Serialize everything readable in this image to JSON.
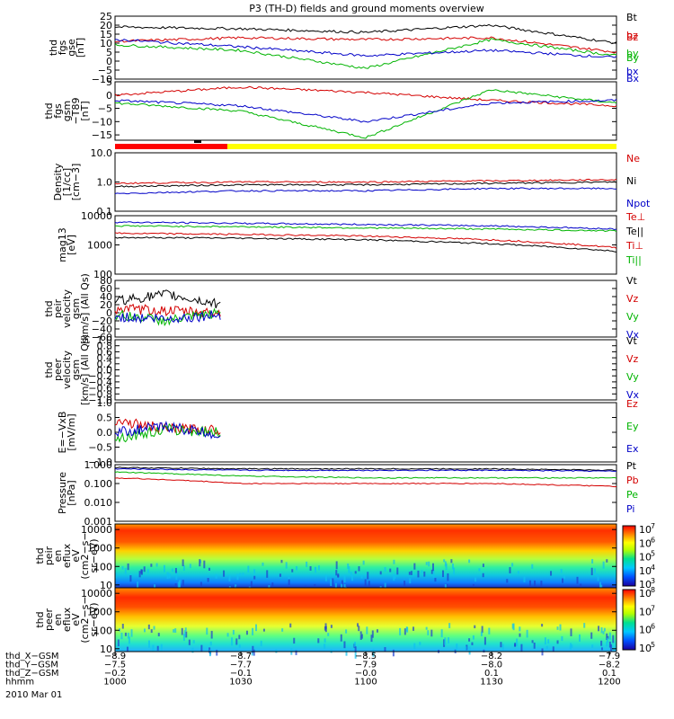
{
  "title": "P3 (TH-D) fields and ground moments overview",
  "panels": [
    {
      "id": "fgs_gse",
      "ylabel": [
        "thd",
        "fgs",
        "gse",
        "[nT]"
      ],
      "ticks": [
        "25",
        "20",
        "15",
        "10",
        "5",
        "0",
        "−5",
        "−10"
      ],
      "legend": [
        {
          "t": "Bt",
          "c": "#000000"
        },
        {
          "t": "bz",
          "c": "#d40000"
        },
        {
          "t": "by",
          "c": "#00b400"
        },
        {
          "t": "bx",
          "c": "#0000c8"
        }
      ]
    },
    {
      "id": "fgs_gsm",
      "ylabel": [
        "thd",
        "fgs",
        "gsm",
        "−T89",
        "[nT]"
      ],
      "ticks": [
        "5",
        "0",
        "−5",
        "−10",
        "−15"
      ],
      "legend": [
        {
          "t": "Bz",
          "c": "#d40000"
        },
        {
          "t": "By",
          "c": "#00b400"
        },
        {
          "t": "Bx",
          "c": "#0000c8"
        }
      ]
    },
    {
      "id": "density",
      "ylabel": [
        "Density",
        "[1/cc]",
        "[cm−3]"
      ],
      "ticks": [
        "10.0",
        "1.0",
        "0.1"
      ],
      "legend": [
        {
          "t": "Ne",
          "c": "#d40000"
        },
        {
          "t": "Ni",
          "c": "#000000"
        },
        {
          "t": "Npot",
          "c": "#0000c8"
        }
      ]
    },
    {
      "id": "temp",
      "ylabel": [
        "mag13",
        "[eV]"
      ],
      "ticks": [
        "10000",
        "1000",
        "100"
      ],
      "legend": [
        {
          "t": "Te⊥",
          "c": "#d40000"
        },
        {
          "t": "Te||",
          "c": "#000000"
        },
        {
          "t": "Ti⊥",
          "c": "#d40000"
        },
        {
          "t": "Ti||",
          "c": "#00b400"
        }
      ]
    },
    {
      "id": "peir_vel",
      "ylabel": [
        "thd",
        "peir",
        "velocity",
        "gsm",
        "[km/s] (All Qs)"
      ],
      "ticks": [
        "80",
        "60",
        "40",
        "20",
        "0",
        "−20",
        "−40",
        "−60"
      ],
      "legend": [
        {
          "t": "Vt",
          "c": "#000000"
        },
        {
          "t": "Vz",
          "c": "#d40000"
        },
        {
          "t": "Vy",
          "c": "#00b400"
        },
        {
          "t": "Vx",
          "c": "#0000c8"
        }
      ]
    },
    {
      "id": "peer_vel",
      "ylabel": [
        "thd",
        "peer",
        "velocity",
        "gsm",
        "[km/s] (All Qs)"
      ],
      "ticks": [
        "1.0",
        "0.8",
        "0.6",
        "0.4",
        "0.2",
        "0.0",
        "−0.2",
        "−0.4",
        "−0.6",
        "−0.8",
        "−1.0"
      ],
      "legend": [
        {
          "t": "Vt",
          "c": "#000000"
        },
        {
          "t": "Vz",
          "c": "#d40000"
        },
        {
          "t": "Vy",
          "c": "#00b400"
        },
        {
          "t": "Vx",
          "c": "#0000c8"
        }
      ]
    },
    {
      "id": "efield",
      "ylabel": [
        "E=−VxB",
        "[mV/m]"
      ],
      "ticks": [
        "1.0",
        "0.5",
        "0.0",
        "−0.5",
        "−1.0"
      ],
      "legend": [
        {
          "t": "Ez",
          "c": "#d40000"
        },
        {
          "t": "Ey",
          "c": "#00b400"
        },
        {
          "t": "Ex",
          "c": "#0000c8"
        }
      ]
    },
    {
      "id": "pressure",
      "ylabel": [
        "Pressure",
        "[nPa]"
      ],
      "ticks": [
        "1.000",
        "0.100",
        "0.010",
        "0.001"
      ],
      "legend": [
        {
          "t": "Pt",
          "c": "#000000"
        },
        {
          "t": "Pb",
          "c": "#d40000"
        },
        {
          "t": "Pe",
          "c": "#00b400"
        },
        {
          "t": "Pi",
          "c": "#0000c8"
        }
      ]
    },
    {
      "id": "peir_spec",
      "ylabel": [
        "thd",
        "peir",
        "en",
        "eflux",
        "eV",
        "(cm2−s−",
        "sr−eV)"
      ],
      "ticks": [
        "10000",
        "1000",
        "100",
        "10"
      ],
      "colorbar": [
        "10",
        "10",
        "10",
        "10",
        "10"
      ],
      "cb_exp": [
        "7",
        "6",
        "5",
        "4",
        "3"
      ]
    },
    {
      "id": "peer_spec",
      "ylabel": [
        "thd",
        "peer",
        "en",
        "eflux",
        "eV",
        "(cm2−s−",
        "sr−eV)"
      ],
      "ticks": [
        "10000",
        "1000",
        "100",
        "10"
      ],
      "colorbar": [
        "10",
        "10",
        "10",
        "10"
      ],
      "cb_exp": [
        "8",
        "7",
        "6",
        "5"
      ]
    }
  ],
  "xaxis": {
    "rows": [
      {
        "label": "thd_X−GSM",
        "values": [
          "−8.9",
          "−8.7",
          "−8.5",
          "−8.2",
          "−7.9"
        ]
      },
      {
        "label": "thd_Y−GSM",
        "values": [
          "−7.5",
          "−7.7",
          "−7.9",
          "−8.0",
          "−8.2"
        ]
      },
      {
        "label": "thd_Z−GSM",
        "values": [
          "−0.2",
          "−0.1",
          "−0.0",
          "0.1",
          "0.1"
        ]
      },
      {
        "label": "hhmm",
        "values": [
          "1000",
          "1030",
          "1100",
          "1130",
          "1200"
        ]
      }
    ],
    "date": "2010 Mar 01"
  },
  "chart_data": [
    {
      "type": "line",
      "title": "P3 (TH-D) fields and ground moments overview",
      "ylabel": "thd fgs gse [nT]",
      "x": [
        "1000",
        "1030",
        "1100",
        "1130",
        "1200"
      ],
      "ylim": [
        -10,
        25
      ],
      "series": [
        {
          "name": "Bt",
          "values": [
            19,
            18,
            16,
            20,
            10
          ]
        },
        {
          "name": "bz",
          "values": [
            11,
            13,
            12,
            13,
            5
          ]
        },
        {
          "name": "by",
          "values": [
            9,
            6,
            -4,
            12,
            3
          ]
        },
        {
          "name": "bx",
          "values": [
            12,
            8,
            3,
            6,
            2
          ]
        }
      ]
    },
    {
      "type": "line",
      "ylabel": "thd fgs gsm −T89 [nT]",
      "x": [
        "1000",
        "1030",
        "1100",
        "1130",
        "1200"
      ],
      "ylim": [
        -17,
        5
      ],
      "series": [
        {
          "name": "Bz",
          "values": [
            0,
            3,
            1,
            -2,
            -4
          ]
        },
        {
          "name": "By",
          "values": [
            -3,
            -6,
            -16,
            2,
            -3
          ]
        },
        {
          "name": "Bx",
          "values": [
            -2,
            -4,
            -10,
            -3,
            -2
          ]
        }
      ]
    },
    {
      "type": "line",
      "ylabel": "Density [1/cc] [cm−3]",
      "scale": "log",
      "x": [
        "1000",
        "1030",
        "1100",
        "1130",
        "1200"
      ],
      "ylim": [
        0.1,
        10
      ],
      "series": [
        {
          "name": "Ne",
          "values": [
            0.9,
            1.0,
            1.0,
            1.1,
            1.2
          ]
        },
        {
          "name": "Ni",
          "values": [
            0.7,
            0.8,
            0.8,
            0.9,
            1.0
          ]
        },
        {
          "name": "Npot",
          "values": [
            0.4,
            0.5,
            0.5,
            0.6,
            0.6
          ]
        }
      ]
    },
    {
      "type": "line",
      "ylabel": "mag13 [eV]",
      "scale": "log",
      "x": [
        "1000",
        "1030",
        "1100",
        "1130",
        "1200"
      ],
      "ylim": [
        100,
        10000
      ],
      "series": [
        {
          "name": "Te⊥",
          "values": [
            2500,
            2300,
            2000,
            1500,
            800
          ]
        },
        {
          "name": "Te||",
          "values": [
            1800,
            1700,
            1500,
            1100,
            600
          ]
        },
        {
          "name": "Ti⊥",
          "values": [
            6000,
            5500,
            5000,
            4500,
            3500
          ]
        },
        {
          "name": "Ti||",
          "values": [
            4500,
            4200,
            3800,
            3500,
            3000
          ]
        }
      ]
    },
    {
      "type": "line",
      "ylabel": "thd peir velocity gsm [km/s] (All Qs)",
      "x": [
        "1000",
        "1010",
        "1020"
      ],
      "ylim": [
        -60,
        80
      ],
      "series": [
        {
          "name": "Vt",
          "values": [
            30,
            45,
            20
          ]
        },
        {
          "name": "Vz",
          "values": [
            10,
            5,
            0
          ]
        },
        {
          "name": "Vy",
          "values": [
            -5,
            -20,
            0
          ]
        },
        {
          "name": "Vx",
          "values": [
            -10,
            -15,
            -5
          ]
        }
      ]
    },
    {
      "type": "line",
      "ylabel": "thd peer velocity gsm [km/s] (All Qs)",
      "ylim": [
        -1,
        1
      ],
      "series": []
    },
    {
      "type": "line",
      "ylabel": "E=−VxB [mV/m]",
      "x": [
        "1000",
        "1010",
        "1020"
      ],
      "ylim": [
        -1,
        1
      ],
      "series": [
        {
          "name": "Ez",
          "values": [
            0.4,
            0.1,
            0.1
          ]
        },
        {
          "name": "Ey",
          "values": [
            -0.2,
            0.1,
            0.0
          ]
        },
        {
          "name": "Ex",
          "values": [
            0.0,
            0.2,
            -0.1
          ]
        }
      ]
    },
    {
      "type": "line",
      "ylabel": "Pressure [nPa]",
      "scale": "log",
      "x": [
        "1000",
        "1030",
        "1100",
        "1130",
        "1200"
      ],
      "ylim": [
        0.001,
        1
      ],
      "series": [
        {
          "name": "Pt",
          "values": [
            0.7,
            0.6,
            0.6,
            0.6,
            0.5
          ]
        },
        {
          "name": "Pb",
          "values": [
            0.2,
            0.1,
            0.1,
            0.1,
            0.07
          ]
        },
        {
          "name": "Pe",
          "values": [
            0.4,
            0.25,
            0.2,
            0.2,
            0.2
          ]
        },
        {
          "name": "Pi",
          "values": [
            0.6,
            0.5,
            0.5,
            0.5,
            0.45
          ]
        }
      ]
    },
    {
      "type": "heatmap",
      "ylabel": "thd peir en eflux eV (cm2−s−sr−eV)",
      "scale": "log",
      "ylim": [
        7,
        20000
      ],
      "colorbar_range": [
        "10^3",
        "10^7"
      ]
    },
    {
      "type": "heatmap",
      "ylabel": "thd peer en eflux eV (cm2−s−sr−eV)",
      "scale": "log",
      "ylim": [
        7,
        20000
      ],
      "colorbar_range": [
        "10^5",
        "10^8"
      ]
    }
  ]
}
